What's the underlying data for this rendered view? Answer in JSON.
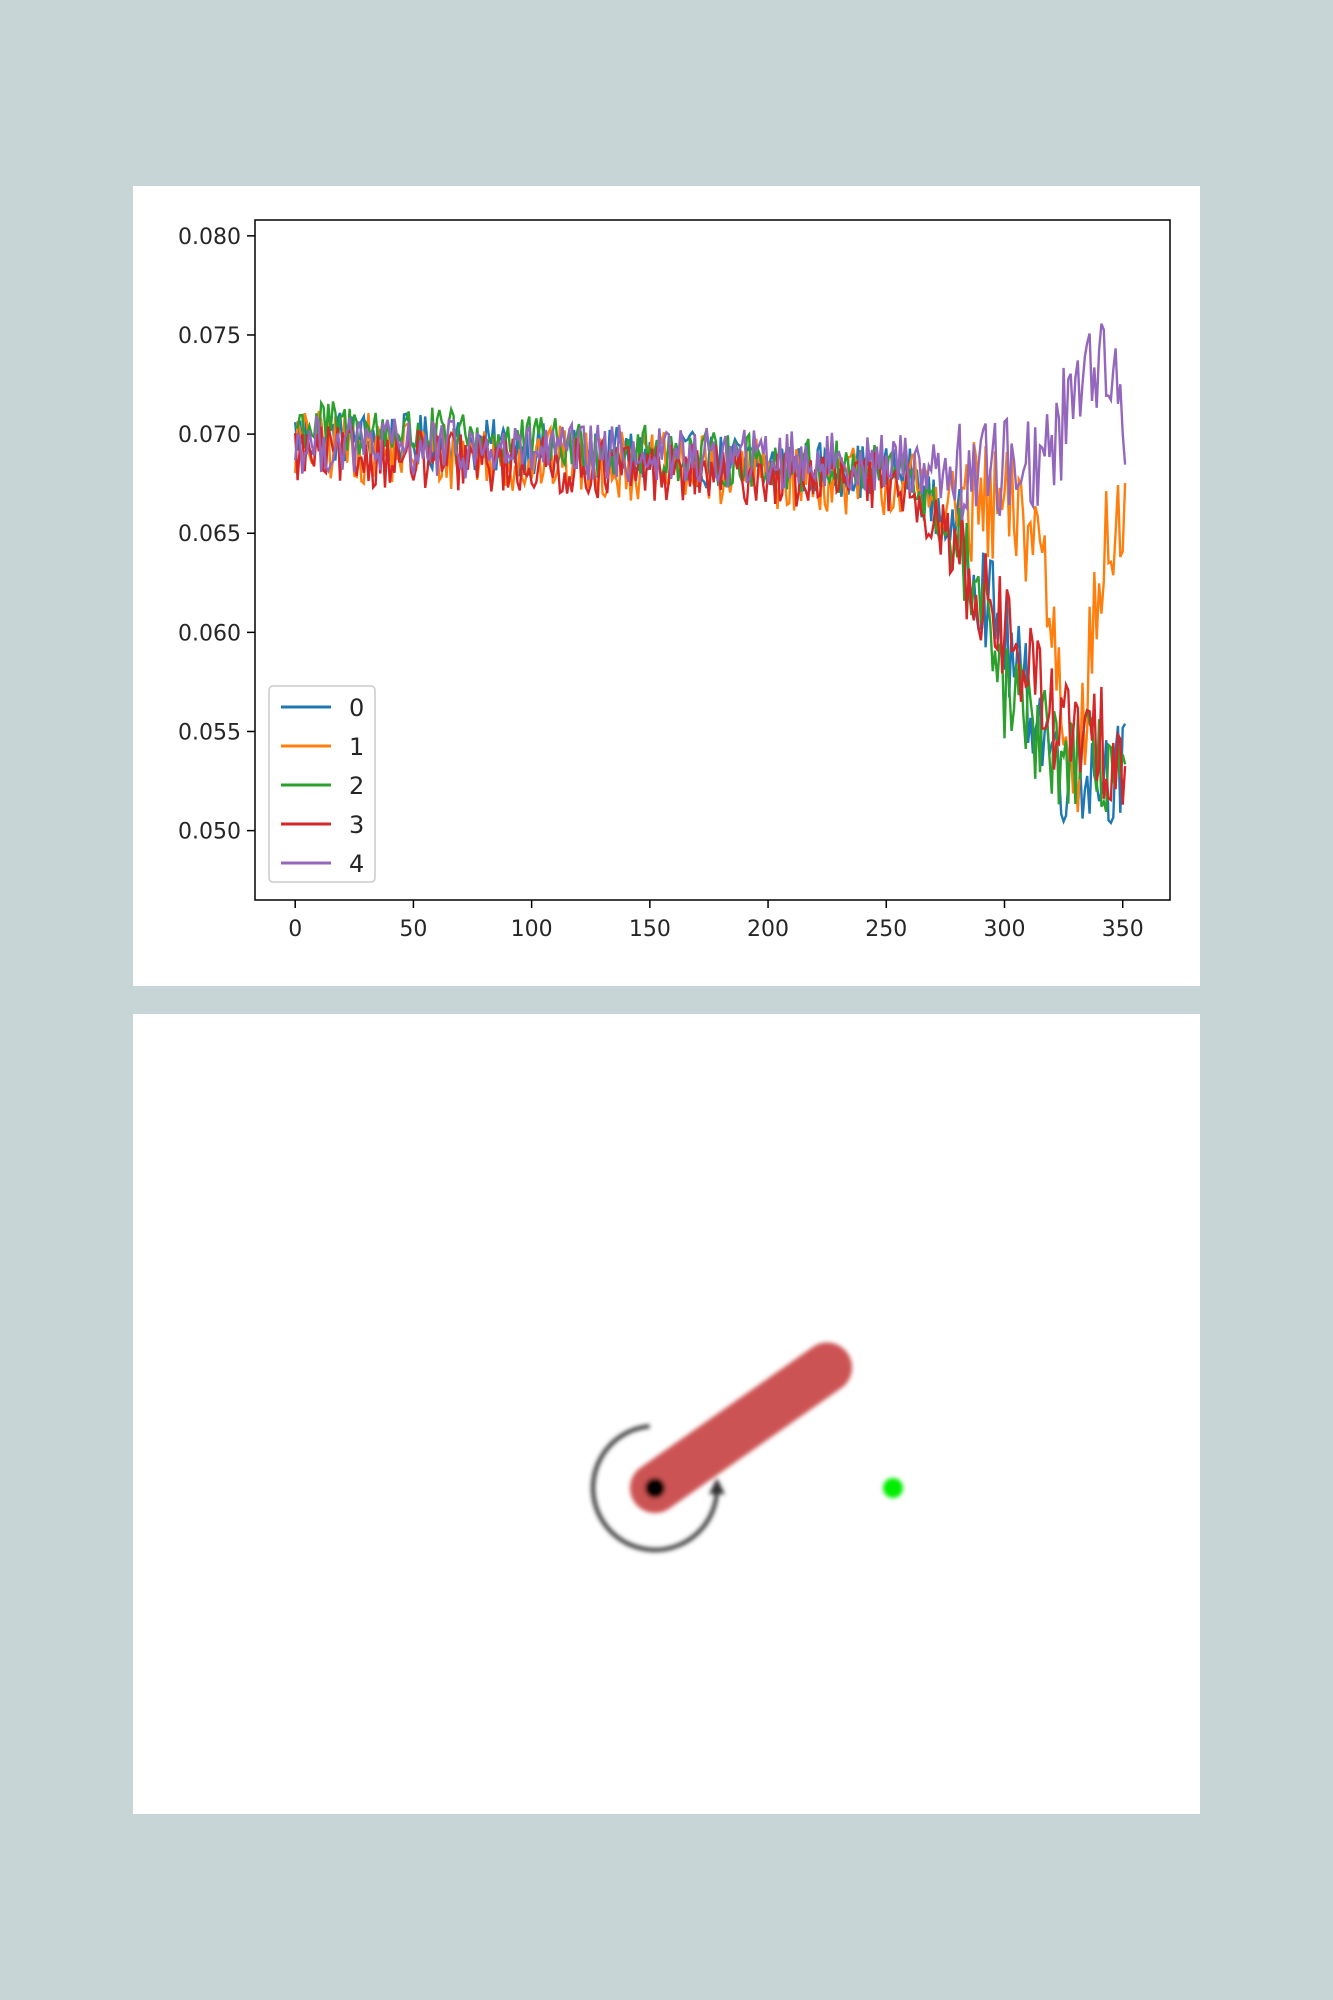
{
  "chart_data": {
    "type": "line",
    "title": "",
    "xlabel": "",
    "ylabel": "",
    "xlim": [
      -17,
      370
    ],
    "ylim": [
      0.0465,
      0.0808
    ],
    "xticks": [
      0,
      50,
      100,
      150,
      200,
      250,
      300,
      350
    ],
    "yticks": [
      0.05,
      0.055,
      0.06,
      0.065,
      0.07,
      0.075,
      0.08
    ],
    "ytick_labels": [
      "0.050",
      "0.055",
      "0.060",
      "0.065",
      "0.070",
      "0.075",
      "0.080"
    ],
    "grid": false,
    "legend_position": "lower-left",
    "n_points": 352,
    "series": [
      {
        "name": "0",
        "color": "#1f77b4",
        "trend": [
          [
            0,
            0.07
          ],
          [
            260,
            0.068
          ],
          [
            285,
            0.064
          ],
          [
            305,
            0.058
          ],
          [
            325,
            0.053
          ],
          [
            352,
            0.053
          ]
        ],
        "noise": 0.0014
      },
      {
        "name": "1",
        "color": "#ff7f0e",
        "trend": [
          [
            0,
            0.0695
          ],
          [
            260,
            0.0675
          ],
          [
            275,
            0.0665
          ],
          [
            300,
            0.066
          ],
          [
            315,
            0.065
          ],
          [
            325,
            0.056
          ],
          [
            332,
            0.054
          ],
          [
            342,
            0.064
          ],
          [
            352,
            0.066
          ]
        ],
        "noise": 0.0018
      },
      {
        "name": "2",
        "color": "#2ca02c",
        "trend": [
          [
            0,
            0.0705
          ],
          [
            260,
            0.068
          ],
          [
            285,
            0.063
          ],
          [
            300,
            0.057
          ],
          [
            320,
            0.054
          ],
          [
            352,
            0.053
          ]
        ],
        "noise": 0.0014
      },
      {
        "name": "3",
        "color": "#d62728",
        "trend": [
          [
            0,
            0.069
          ],
          [
            260,
            0.0675
          ],
          [
            285,
            0.063
          ],
          [
            305,
            0.059
          ],
          [
            325,
            0.055
          ],
          [
            352,
            0.054
          ]
        ],
        "noise": 0.0015
      },
      {
        "name": "4",
        "color": "#9467bd",
        "trend": [
          [
            0,
            0.0695
          ],
          [
            260,
            0.0685
          ],
          [
            280,
            0.068
          ],
          [
            300,
            0.0685
          ],
          [
            320,
            0.069
          ],
          [
            335,
            0.0745
          ],
          [
            345,
            0.0725
          ],
          [
            352,
            0.07
          ]
        ],
        "noise": 0.0015
      }
    ]
  },
  "pendulum": {
    "angle_deg": 35,
    "rod_color": "#cc5252",
    "pivot_color": "#000000",
    "goal_color": "#00ee00",
    "arrow_color": "#333333"
  }
}
